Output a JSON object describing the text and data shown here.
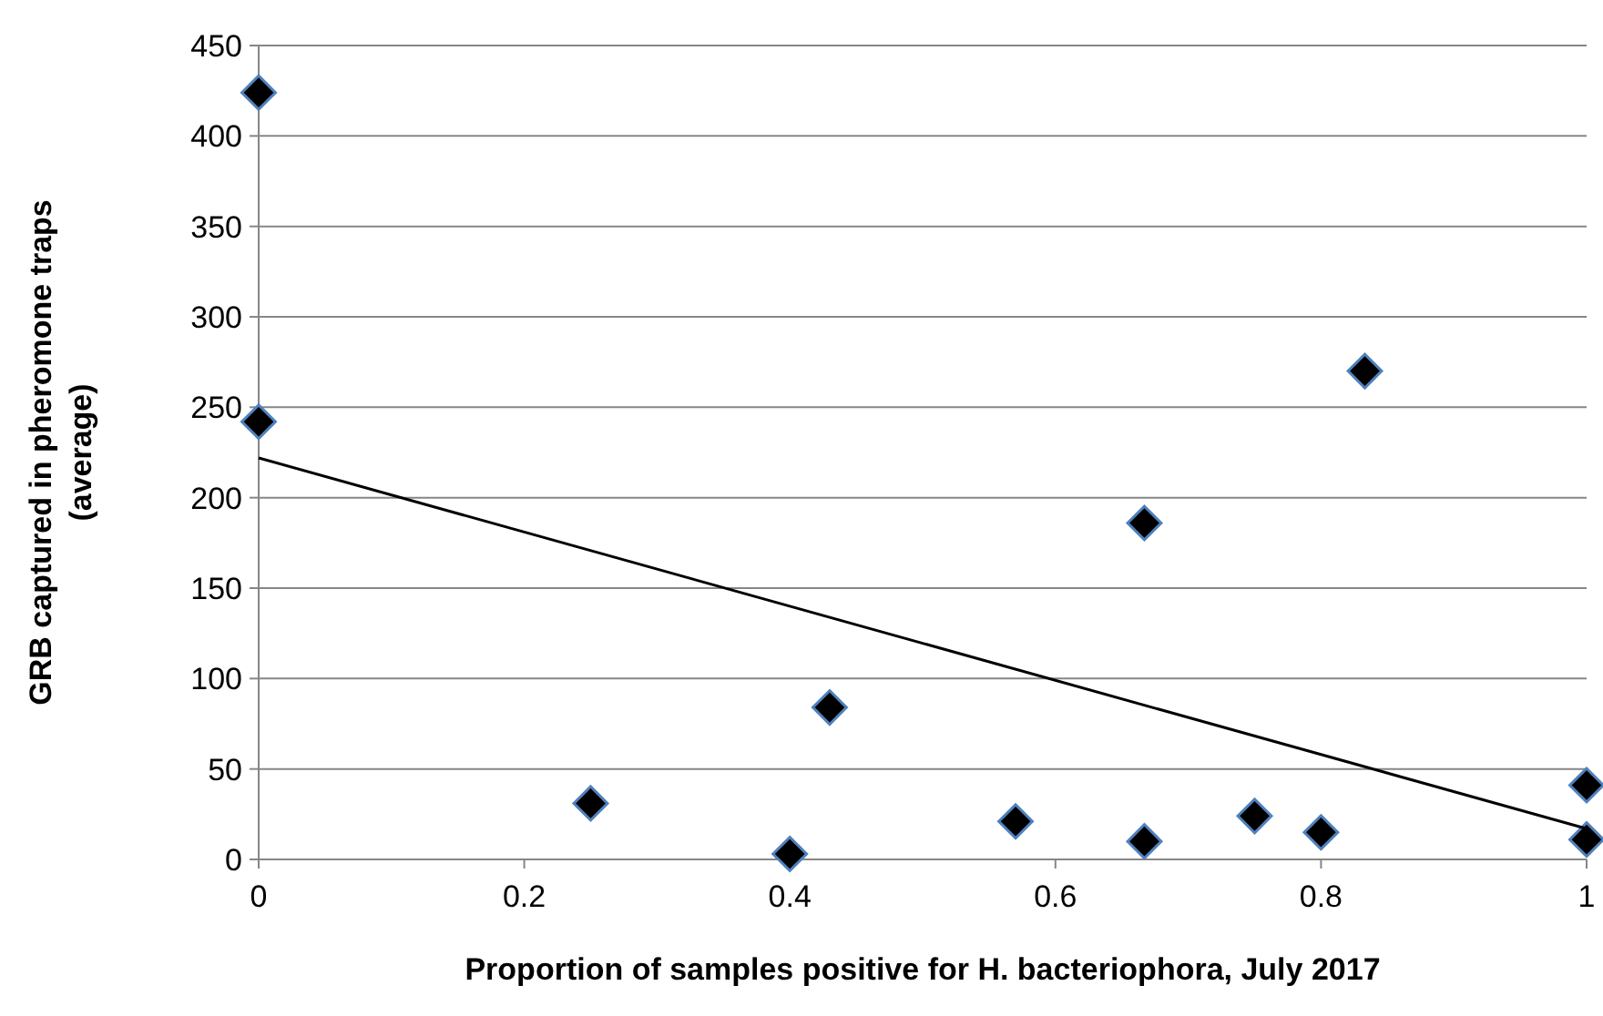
{
  "chart_data": {
    "type": "scatter",
    "xlabel": "Proportion of samples positive for H. bacteriophora, July 2017",
    "ylabel": "GRB captured in pheromone traps\n(average)",
    "xlim": [
      0,
      1
    ],
    "xticks": [
      0,
      0.2,
      0.4,
      0.6,
      0.8,
      1
    ],
    "ylim": [
      0,
      450
    ],
    "yticks": [
      0,
      50,
      100,
      150,
      200,
      250,
      300,
      350,
      400,
      450
    ],
    "grid": "y",
    "series": [
      {
        "color": "#000000",
        "marker": "diamond",
        "x": [
          0,
          0,
          0.25,
          0.4,
          0.43,
          0.57,
          0.667,
          0.667,
          0.75,
          0.8,
          0.833,
          1,
          1
        ],
        "values": [
          424,
          242,
          31,
          3,
          84,
          21,
          186,
          10,
          24,
          15,
          270,
          41,
          11
        ]
      },
      {
        "type": "line",
        "color": "#000000",
        "marker": "none",
        "line_style": "solid",
        "x": [
          0,
          1
        ],
        "values": [
          222,
          17
        ]
      }
    ]
  }
}
